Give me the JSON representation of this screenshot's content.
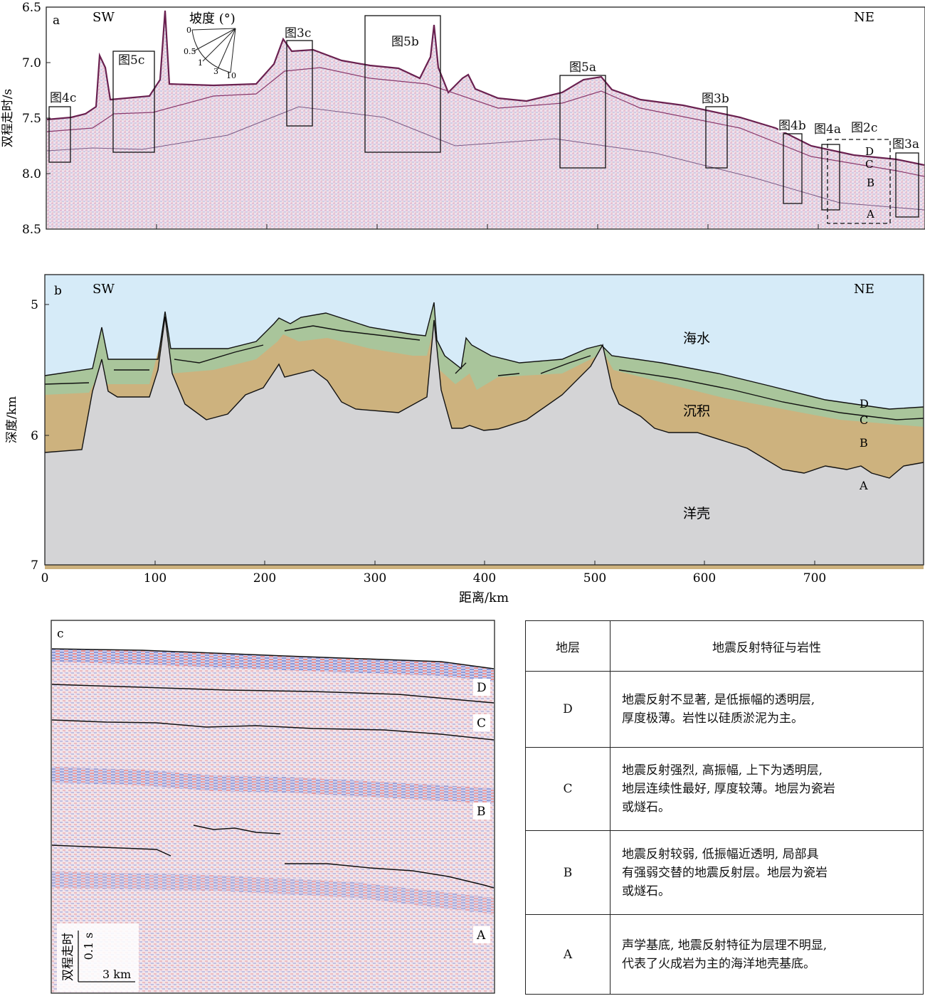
{
  "panel_a": {
    "label": "a",
    "sw": "SW",
    "ne": "NE",
    "ylabel": "双程走时/s",
    "yticks": [
      "6.5",
      "7.0",
      "7.5",
      "8.0",
      "8.5"
    ],
    "slope_title": "坡度 (°)",
    "slope_ticks": [
      "0",
      "0.5",
      "1",
      "3",
      "10"
    ],
    "boxes": [
      "图4c",
      "图5c",
      "图3c",
      "图5b",
      "图5a",
      "图3b",
      "图4b",
      "图4a",
      "图2c",
      "图3a"
    ],
    "layers": [
      "D",
      "C",
      "B",
      "A"
    ]
  },
  "panel_b": {
    "label": "b",
    "sw": "SW",
    "ne": "NE",
    "ylabel": "深度/km",
    "xlabel": "距离/km",
    "yticks": [
      "5",
      "6",
      "7"
    ],
    "xticks": [
      "0",
      "100",
      "200",
      "300",
      "400",
      "500",
      "600",
      "700"
    ],
    "zones": {
      "water": "海水",
      "sediment": "沉积",
      "crust": "洋壳"
    },
    "layers": [
      "D",
      "C",
      "B",
      "A"
    ],
    "colors": {
      "water": "#d6ebf8",
      "sediment": "#cdb27e",
      "upper": "#a9c59b",
      "crust": "#d4d4d6"
    }
  },
  "panel_c": {
    "label": "c",
    "layers": [
      "D",
      "C",
      "B",
      "A"
    ],
    "scale_time": "0.1 s",
    "scale_dist": "3 km",
    "scale_label": "双程走时"
  },
  "table": {
    "header_layer": "地层",
    "header_desc": "地震反射特征与岩性",
    "rows": [
      {
        "layer": "D",
        "desc": [
          "地震反射不显著, 是低振幅的透明层,",
          "厚度极薄。岩性以硅质淤泥为主。"
        ]
      },
      {
        "layer": "C",
        "desc": [
          "地震反射强烈, 高振幅, 上下为透明层,",
          "地层连续性最好, 厚度较薄。地层为瓷岩",
          "或燧石。"
        ]
      },
      {
        "layer": "B",
        "desc": [
          "地震反射较弱, 低振幅近透明, 局部具",
          "有强弱交替的地震反射层。地层为瓷岩",
          "或燧石。"
        ]
      },
      {
        "layer": "A",
        "desc": [
          "声学基底, 地震反射特征为层理不明显,",
          "代表了火成岩为主的海洋地壳基底。"
        ]
      }
    ]
  }
}
